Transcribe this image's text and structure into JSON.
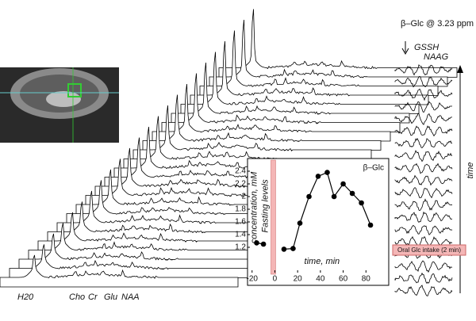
{
  "chart_data": {
    "type": "line",
    "series_label": "β–Glc",
    "x_label": "time, min",
    "y_label": "concentration, mM",
    "band_label": "Fasting levels",
    "x": [
      -16,
      -10,
      8,
      16,
      22,
      30,
      38,
      46,
      52,
      60,
      68,
      76,
      84
    ],
    "series": [
      {
        "name": "β–Glc",
        "color": "#000000",
        "values": [
          1.27,
          1.25,
          1.17,
          1.18,
          1.58,
          2.0,
          2.32,
          2.38,
          2.0,
          2.2,
          2.05,
          1.9,
          1.55
        ]
      }
    ],
    "xlim": [
      -24,
      100
    ],
    "ylim": [
      0.6,
      2.6
    ],
    "xticks": [
      -20,
      0,
      20,
      40,
      60,
      80
    ],
    "yticks": [
      1.2,
      1.4,
      1.6,
      1.8,
      2.0,
      2.2,
      2.4
    ],
    "band_color": "#f4b6b6"
  },
  "figure": {
    "peak_labels": [
      "H20",
      "Cho",
      "Cr",
      "Glu",
      "NAA"
    ],
    "difference": {
      "title": "β–Glc @ 3.23 ppm",
      "labels": [
        "GSSH",
        "NAAG"
      ],
      "axis": "time",
      "event": "Oral Glc intake (2 min)"
    }
  }
}
